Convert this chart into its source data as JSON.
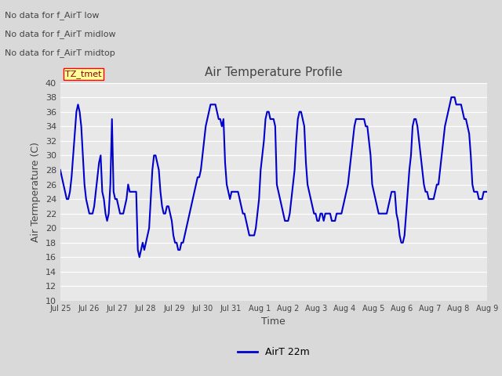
{
  "title": "Air Temperature Profile",
  "xlabel": "Time",
  "ylabel": "Air Termperature (C)",
  "ylim": [
    10,
    40
  ],
  "yticks": [
    10,
    12,
    14,
    16,
    18,
    20,
    22,
    24,
    26,
    28,
    30,
    32,
    34,
    36,
    38,
    40
  ],
  "line_color": "#0000CC",
  "line_width": 1.5,
  "bg_color": "#D9D9D9",
  "plot_bg_color": "#E8E8E8",
  "text_color": "#444444",
  "legend_label": "AirT 22m",
  "no_data_texts": [
    "No data for f_AirT low",
    "No data for f_AirT midlow",
    "No data for f_AirT midtop"
  ],
  "tz_label": "TZ_tmet",
  "x_tick_labels": [
    "Jul 25",
    "Jul 26",
    "Jul 27",
    "Jul 28",
    "Jul 29",
    "Jul 30",
    "Jul 31",
    "Aug 1",
    "Aug 2",
    "Aug 3",
    "Aug 4",
    "Aug 5",
    "Aug 6",
    "Aug 7",
    "Aug 8",
    "Aug 9"
  ],
  "y_values": [
    28,
    27,
    26,
    25,
    24,
    24,
    25,
    27,
    30,
    33,
    36,
    37,
    36,
    34,
    30,
    26,
    24,
    23,
    22,
    22,
    22,
    23,
    25,
    27,
    29,
    30,
    25,
    24,
    22,
    21,
    22,
    26,
    35,
    25,
    24,
    24,
    23,
    22,
    22,
    22,
    23,
    24,
    26,
    25,
    25,
    25,
    25,
    25,
    17,
    16,
    17,
    18,
    17,
    18,
    19,
    20,
    24,
    28,
    30,
    30,
    29,
    28,
    25,
    23,
    22,
    22,
    23,
    23,
    22,
    21,
    19,
    18,
    18,
    17,
    17,
    18,
    18,
    19,
    20,
    21,
    22,
    23,
    24,
    25,
    26,
    27,
    27,
    28,
    30,
    32,
    34,
    35,
    36,
    37,
    37,
    37,
    37,
    36,
    35,
    35,
    34,
    35,
    29,
    26,
    25,
    24,
    25,
    25,
    25,
    25,
    25,
    24,
    23,
    22,
    22,
    21,
    20,
    19,
    19,
    19,
    19,
    20,
    22,
    24,
    28,
    30,
    32,
    35,
    36,
    36,
    35,
    35,
    35,
    34,
    26,
    25,
    24,
    23,
    22,
    21,
    21,
    21,
    22,
    24,
    26,
    28,
    32,
    35,
    36,
    36,
    35,
    34,
    29,
    26,
    25,
    24,
    23,
    22,
    22,
    21,
    21,
    22,
    22,
    21,
    22,
    22,
    22,
    22,
    21,
    21,
    21,
    22,
    22,
    22,
    22,
    23,
    24,
    25,
    26,
    28,
    30,
    32,
    34,
    35,
    35,
    35,
    35,
    35,
    35,
    34,
    34,
    32,
    30,
    26,
    25,
    24,
    23,
    22,
    22,
    22,
    22,
    22,
    22,
    23,
    24,
    25,
    25,
    25,
    22,
    21,
    19,
    18,
    18,
    19,
    22,
    25,
    28,
    30,
    34,
    35,
    35,
    34,
    32,
    30,
    28,
    26,
    25,
    25,
    24,
    24,
    24,
    24,
    25,
    26,
    26,
    28,
    30,
    32,
    34,
    35,
    36,
    37,
    38,
    38,
    38,
    37,
    37,
    37,
    37,
    36,
    35,
    35,
    34,
    33,
    30,
    26,
    25,
    25,
    25,
    24,
    24,
    24,
    25,
    25,
    25
  ]
}
